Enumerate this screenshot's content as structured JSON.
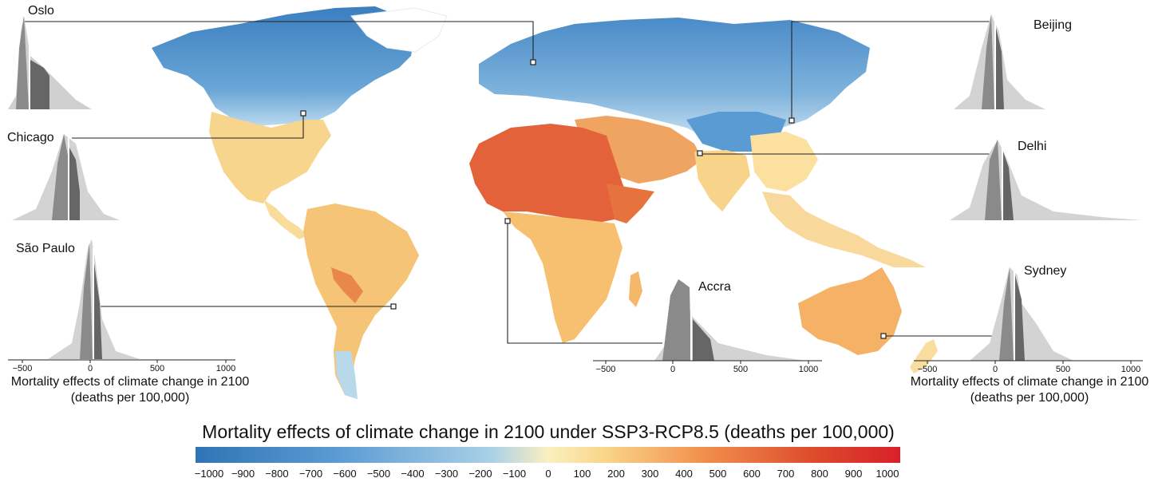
{
  "map": {
    "title": "Mortality effects of climate change in 2100 under SSP3-RCP8.5 (deaths per 100,000)",
    "colorbar": {
      "ticks": [
        "−1000",
        "−900",
        "−800",
        "−700",
        "−600",
        "−500",
        "−400",
        "−300",
        "−200",
        "−100",
        "0",
        "100",
        "200",
        "300",
        "400",
        "500",
        "600",
        "700",
        "800",
        "900",
        "1000"
      ],
      "range": [
        -1000,
        1000
      ],
      "colors": [
        "#2f74b5",
        "#5b9bd3",
        "#9dc8e3",
        "#fbe6a3",
        "#f9c97a",
        "#f2904d",
        "#dd4a2c",
        "#d7202a"
      ]
    },
    "axis_title_line1": "Mortality effects of climate change in 2100",
    "axis_title_line2": "(deaths per 100,000)",
    "axis_ticks": [
      "−500",
      "0",
      "500",
      "1000"
    ],
    "cities": [
      {
        "name": "Oslo"
      },
      {
        "name": "Chicago"
      },
      {
        "name": "São Paulo"
      },
      {
        "name": "Beijing"
      },
      {
        "name": "Delhi"
      },
      {
        "name": "Accra"
      },
      {
        "name": "Sydney"
      }
    ]
  }
}
